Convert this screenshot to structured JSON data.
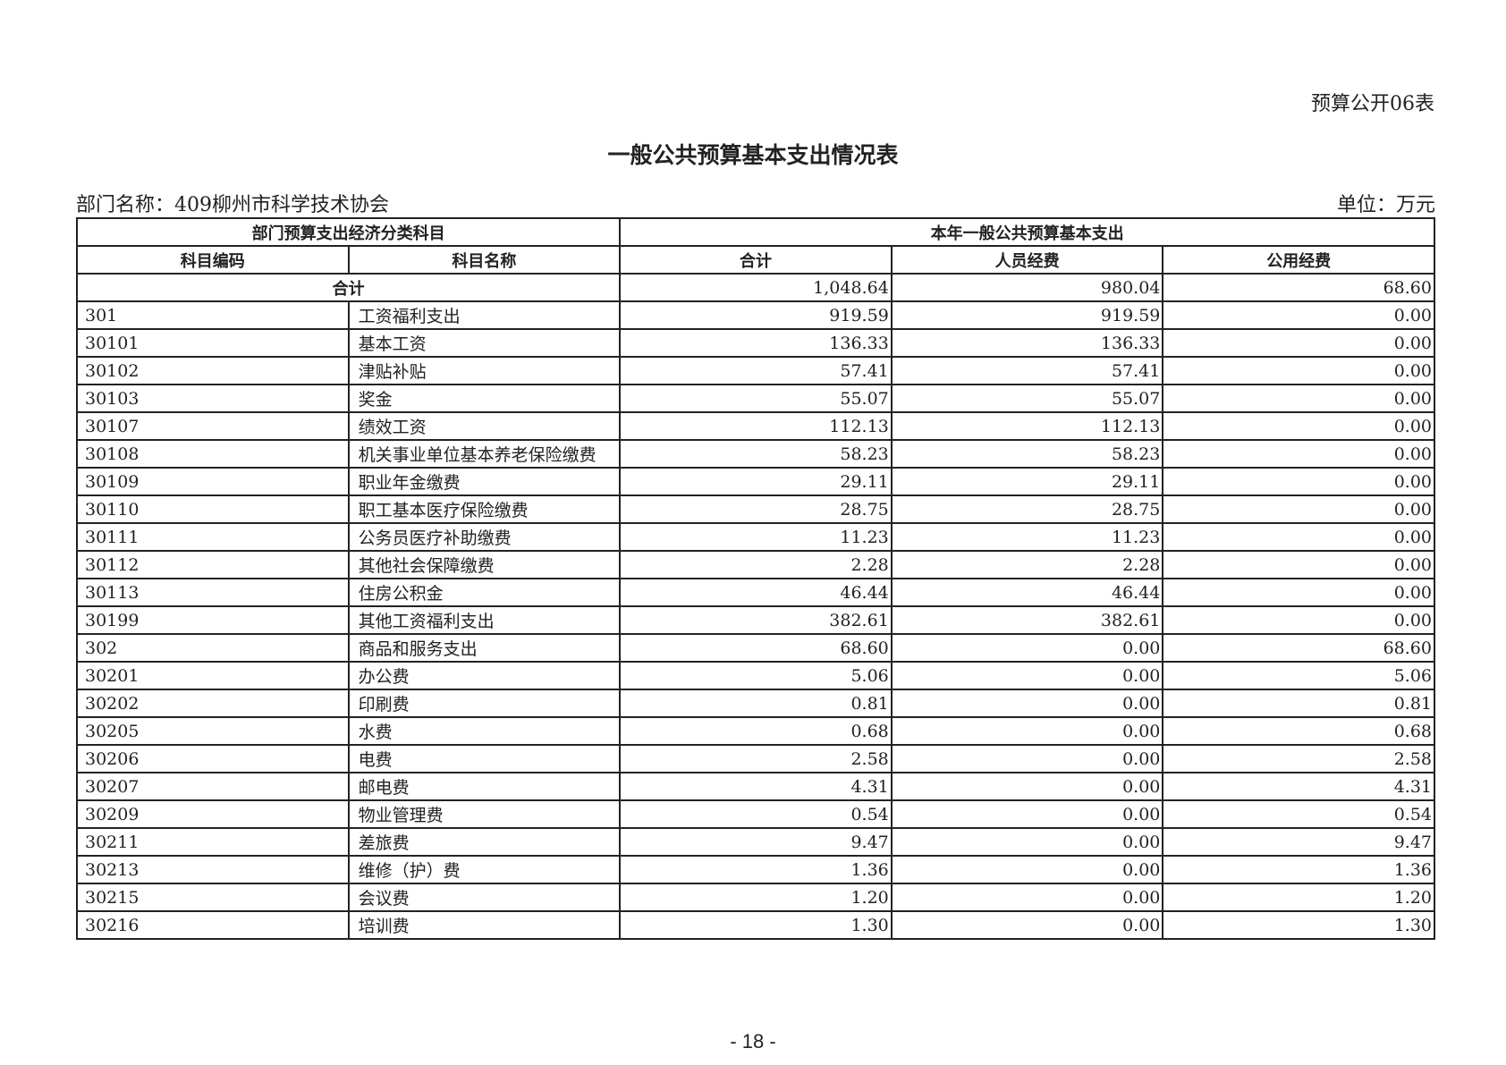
{
  "form_no": "预算公开06表",
  "title": "一般公共预算基本支出情况表",
  "dept_label": "部门名称：409柳州市科学技术协会",
  "unit_label": "单位：万元",
  "header": {
    "group_left": "部门预算支出经济分类科目",
    "group_right": "本年一般公共预算基本支出",
    "col_code": "科目编码",
    "col_name": "科目名称",
    "col_total": "合计",
    "col_personnel": "人员经费",
    "col_public": "公用经费"
  },
  "total_row": {
    "label": "合计",
    "total": "1,048.64",
    "personnel": "980.04",
    "public": "68.60"
  },
  "rows": [
    {
      "code": "301",
      "name": "工资福利支出",
      "total": "919.59",
      "personnel": "919.59",
      "public": "0.00"
    },
    {
      "code": "30101",
      "name": "基本工资",
      "total": "136.33",
      "personnel": "136.33",
      "public": "0.00"
    },
    {
      "code": "30102",
      "name": "津贴补贴",
      "total": "57.41",
      "personnel": "57.41",
      "public": "0.00"
    },
    {
      "code": "30103",
      "name": "奖金",
      "total": "55.07",
      "personnel": "55.07",
      "public": "0.00"
    },
    {
      "code": "30107",
      "name": "绩效工资",
      "total": "112.13",
      "personnel": "112.13",
      "public": "0.00"
    },
    {
      "code": "30108",
      "name": "机关事业单位基本养老保险缴费",
      "total": "58.23",
      "personnel": "58.23",
      "public": "0.00"
    },
    {
      "code": "30109",
      "name": "职业年金缴费",
      "total": "29.11",
      "personnel": "29.11",
      "public": "0.00"
    },
    {
      "code": "30110",
      "name": "职工基本医疗保险缴费",
      "total": "28.75",
      "personnel": "28.75",
      "public": "0.00"
    },
    {
      "code": "30111",
      "name": "公务员医疗补助缴费",
      "total": "11.23",
      "personnel": "11.23",
      "public": "0.00"
    },
    {
      "code": "30112",
      "name": "其他社会保障缴费",
      "total": "2.28",
      "personnel": "2.28",
      "public": "0.00"
    },
    {
      "code": "30113",
      "name": "住房公积金",
      "total": "46.44",
      "personnel": "46.44",
      "public": "0.00"
    },
    {
      "code": "30199",
      "name": "其他工资福利支出",
      "total": "382.61",
      "personnel": "382.61",
      "public": "0.00"
    },
    {
      "code": "302",
      "name": "商品和服务支出",
      "total": "68.60",
      "personnel": "0.00",
      "public": "68.60"
    },
    {
      "code": "30201",
      "name": "办公费",
      "total": "5.06",
      "personnel": "0.00",
      "public": "5.06"
    },
    {
      "code": "30202",
      "name": "印刷费",
      "total": "0.81",
      "personnel": "0.00",
      "public": "0.81"
    },
    {
      "code": "30205",
      "name": "水费",
      "total": "0.68",
      "personnel": "0.00",
      "public": "0.68"
    },
    {
      "code": "30206",
      "name": "电费",
      "total": "2.58",
      "personnel": "0.00",
      "public": "2.58"
    },
    {
      "code": "30207",
      "name": "邮电费",
      "total": "4.31",
      "personnel": "0.00",
      "public": "4.31"
    },
    {
      "code": "30209",
      "name": "物业管理费",
      "total": "0.54",
      "personnel": "0.00",
      "public": "0.54"
    },
    {
      "code": "30211",
      "name": "差旅费",
      "total": "9.47",
      "personnel": "0.00",
      "public": "9.47"
    },
    {
      "code": "30213",
      "name": "维修（护）费",
      "total": "1.36",
      "personnel": "0.00",
      "public": "1.36"
    },
    {
      "code": "30215",
      "name": "会议费",
      "total": "1.20",
      "personnel": "0.00",
      "public": "1.20"
    },
    {
      "code": "30216",
      "name": "培训费",
      "total": "1.30",
      "personnel": "0.00",
      "public": "1.30"
    }
  ],
  "page_number": "- 18 -"
}
